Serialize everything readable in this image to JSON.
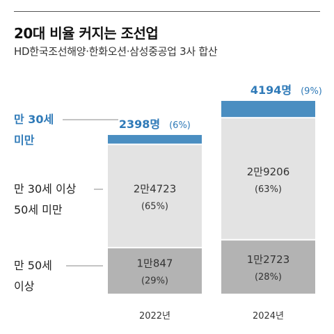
{
  "title": "20대 비율 커지는 조선업",
  "subtitle": "HD한국조선해양·한화오션·삼성중공업 3사 합산",
  "colors": {
    "under30": "#4a8ec1",
    "mid": "#e3e3e3",
    "over50": "#b3b3b3",
    "highlight": "#2f7ab8"
  },
  "chart_data": {
    "type": "bar",
    "stacked": true,
    "categories": [
      "2022년",
      "2024년"
    ],
    "series": [
      {
        "name": "만 50세 이상",
        "values": [
          10847,
          12723
        ],
        "labels": [
          "1만847",
          "1만2723"
        ],
        "percent_labels": [
          "(29%)",
          "(28%)"
        ]
      },
      {
        "name": "만 30세 이상 50세 미만",
        "values": [
          24723,
          29206
        ],
        "labels": [
          "2만4723",
          "2만9206"
        ],
        "percent_labels": [
          "(65%)",
          "(63%)"
        ]
      },
      {
        "name": "만 30세 미만",
        "values": [
          2398,
          4194
        ],
        "labels": [
          "2398명",
          "4194명"
        ],
        "percent_labels": [
          "(6%)",
          "(9%)"
        ]
      }
    ],
    "legend": {
      "under30": [
        "만 30세",
        "미만"
      ],
      "mid": [
        "만 30세 이상",
        "50세 미만"
      ],
      "over50": [
        "만 50세",
        "이상"
      ]
    }
  }
}
